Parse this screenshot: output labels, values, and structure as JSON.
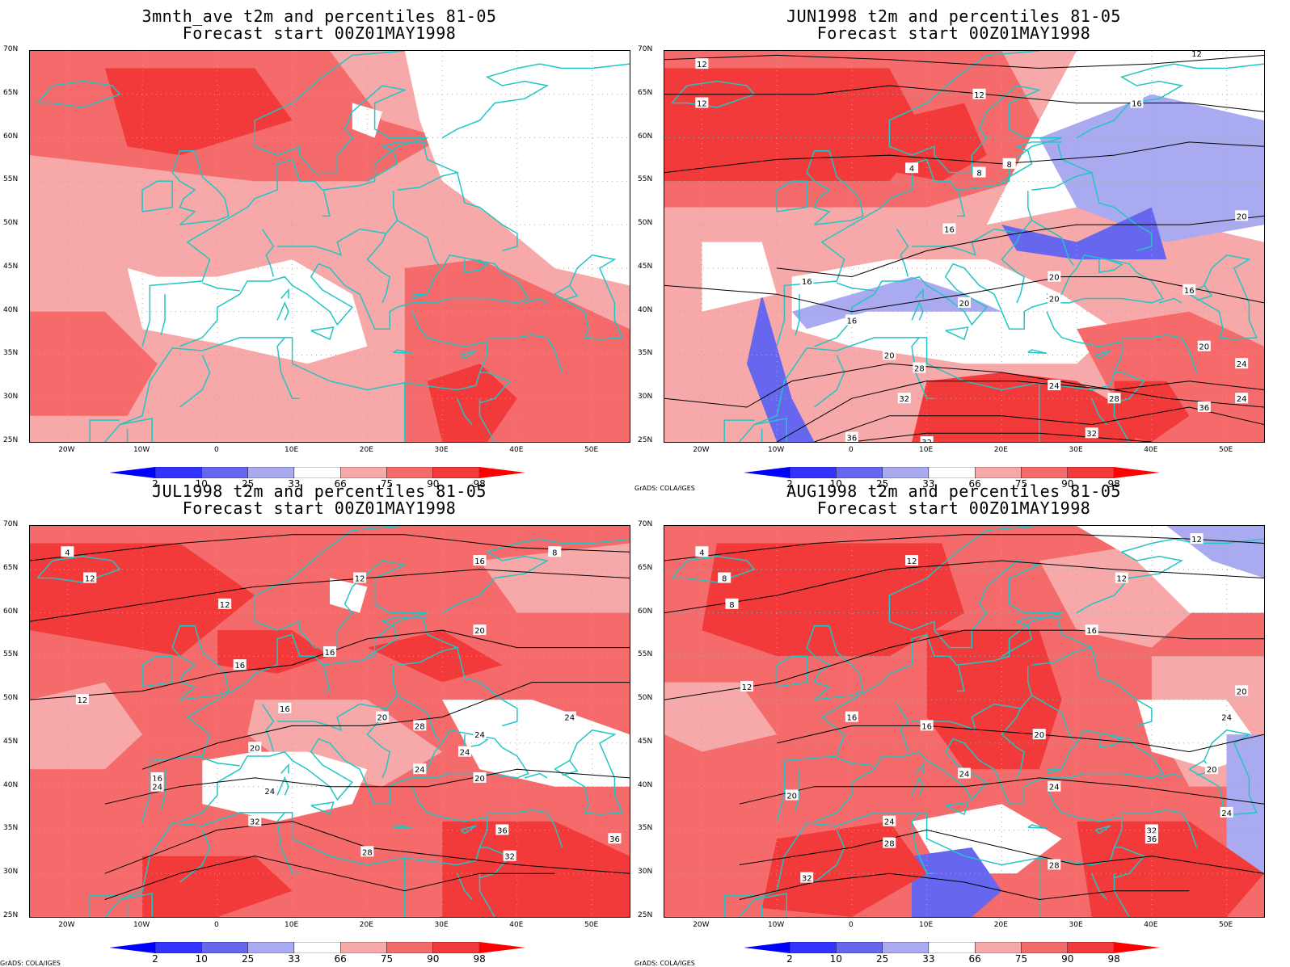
{
  "panels": [
    {
      "title_line1": "3mnth_ave t2m and percentiles 81-05",
      "title_line2": "Forecast start 00Z01MAY1998",
      "show_credit": false,
      "credit": "",
      "contour_labels": []
    },
    {
      "title_line1": "JUN1998 t2m and percentiles 81-05",
      "title_line2": "Forecast start 00Z01MAY1998",
      "show_credit": true,
      "credit": "GrADS: COLA/IGES",
      "contour_labels": [
        "4",
        "8",
        "8",
        "12",
        "12",
        "12",
        "12",
        "16",
        "16",
        "16",
        "16",
        "16",
        "20",
        "20",
        "20",
        "20",
        "20",
        "20",
        "24",
        "24",
        "24",
        "28",
        "28",
        "32",
        "32",
        "32",
        "36",
        "36"
      ]
    },
    {
      "title_line1": "JUL1998 t2m and percentiles 81-05",
      "title_line2": "Forecast start 00Z01MAY1998",
      "show_credit": true,
      "credit": "GrADS: COLA/IGES",
      "contour_labels": [
        "4",
        "8",
        "8",
        "12",
        "12",
        "12",
        "12",
        "16",
        "16",
        "16",
        "16",
        "16",
        "20",
        "20",
        "20",
        "20",
        "24",
        "24",
        "24",
        "24",
        "24",
        "24",
        "28",
        "28",
        "32",
        "32",
        "36",
        "36"
      ]
    },
    {
      "title_line1": "AUG1998 t2m and percentiles 81-05",
      "title_line2": "Forecast start 00Z01MAY1998",
      "show_credit": true,
      "credit": "GrADS: COLA/IGES",
      "contour_labels": [
        "4",
        "8",
        "8",
        "12",
        "12",
        "12",
        "12",
        "16",
        "16",
        "16",
        "20",
        "20",
        "20",
        "20",
        "24",
        "24",
        "24",
        "24",
        "24",
        "28",
        "28",
        "32",
        "32",
        "36",
        "36"
      ]
    }
  ],
  "axes": {
    "lat_ticks": [
      "70N",
      "65N",
      "60N",
      "55N",
      "50N",
      "45N",
      "40N",
      "35N",
      "30N",
      "25N"
    ],
    "lon_ticks": [
      "20W",
      "10W",
      "0",
      "10E",
      "20E",
      "30E",
      "40E",
      "50E"
    ]
  },
  "colorbar": {
    "labels": [
      "2",
      "10",
      "25",
      "33",
      "66",
      "75",
      "90",
      "98"
    ],
    "colors": {
      "below_2": "#0000ff",
      "p2_10": "#3333ff",
      "p10_25": "#6666ee",
      "p25_33": "#aaaaf0",
      "p33_66": "#ffffff",
      "p66_75": "#f7a8a8",
      "p75_90": "#f56b6b",
      "p90_98": "#f23a3a",
      "above_98": "#ff0000"
    }
  },
  "map_style": {
    "coastline_color": "#22c5c5",
    "contour_color": "#000000",
    "grid_color": "#aaaaaa"
  }
}
